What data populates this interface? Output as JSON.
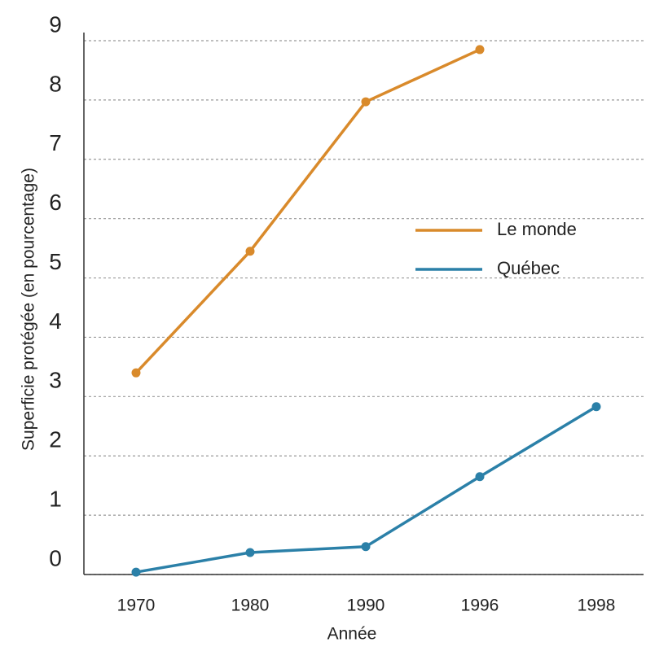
{
  "chart_data": {
    "type": "line",
    "x_label": "Année",
    "y_label": "Superficie protégée (en pourcentage)",
    "categories": [
      "1970",
      "1980",
      "1990",
      "1996",
      "1998"
    ],
    "series": [
      {
        "name": "Le monde",
        "color": "#d98a2b",
        "values": [
          3.4,
          5.45,
          7.97,
          8.85,
          null
        ]
      },
      {
        "name": "Québec",
        "color": "#2b80a8",
        "values": [
          0.04,
          0.37,
          0.47,
          1.65,
          2.83
        ]
      }
    ],
    "ylim": [
      0,
      9
    ],
    "yticks": [
      0,
      1,
      2,
      3,
      4,
      5,
      6,
      7,
      8,
      9
    ],
    "grid": true,
    "legend": "right"
  }
}
